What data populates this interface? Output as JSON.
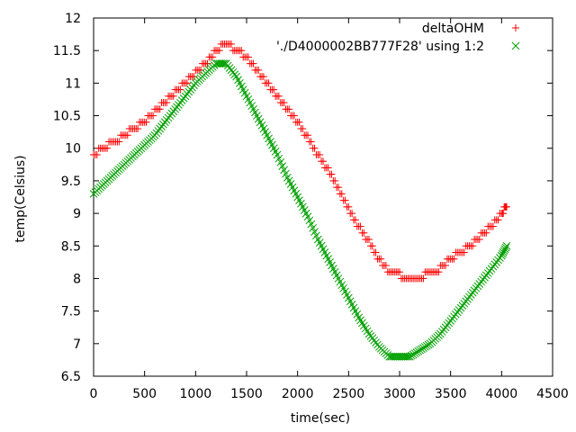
{
  "chart_data": {
    "type": "scatter",
    "xlabel": "time(sec)",
    "ylabel": "temp(Celsius)",
    "xlim": [
      0,
      4500
    ],
    "ylim": [
      6.5,
      12
    ],
    "xticks": [
      0,
      500,
      1000,
      1500,
      2000,
      2500,
      3000,
      3500,
      4000,
      4500
    ],
    "yticks": [
      6.5,
      7,
      7.5,
      8,
      8.5,
      9,
      9.5,
      10,
      10.5,
      11,
      11.5,
      12
    ],
    "xtick_labels": [
      "0",
      "500",
      "1000",
      "1500",
      "2000",
      "2500",
      "3000",
      "3500",
      "4000",
      "4500"
    ],
    "ytick_labels": [
      "6.5",
      "7",
      "7.5",
      "8",
      "8.5",
      "9",
      "9.5",
      "10",
      "10.5",
      "11",
      "11.5",
      "12"
    ],
    "grid": false,
    "legend_position": "top-right",
    "series": [
      {
        "name": "deltaOHM",
        "marker": "plus",
        "color": "#ff0000",
        "x": [
          0,
          100,
          200,
          300,
          400,
          500,
          600,
          700,
          800,
          900,
          1000,
          1100,
          1200,
          1300,
          1400,
          1500,
          1600,
          1700,
          1800,
          1900,
          2000,
          2100,
          2200,
          2300,
          2400,
          2500,
          2600,
          2700,
          2800,
          2900,
          3000,
          3100,
          3200,
          3300,
          3400,
          3500,
          3600,
          3700,
          3800,
          3900,
          4000,
          4050
        ],
        "y": [
          9.9,
          10.0,
          10.1,
          10.2,
          10.3,
          10.4,
          10.55,
          10.7,
          10.85,
          11.0,
          11.15,
          11.3,
          11.5,
          11.6,
          11.5,
          11.4,
          11.2,
          11.0,
          10.8,
          10.6,
          10.4,
          10.15,
          9.9,
          9.65,
          9.35,
          9.05,
          8.8,
          8.55,
          8.3,
          8.1,
          8.05,
          8.0,
          8.0,
          8.1,
          8.15,
          8.3,
          8.4,
          8.5,
          8.65,
          8.8,
          9.0,
          9.1
        ]
      },
      {
        "name": "'./D4000002BB777F28' using 1:2",
        "marker": "cross",
        "color": "#00a000",
        "x": [
          0,
          100,
          200,
          300,
          400,
          500,
          600,
          700,
          800,
          900,
          1000,
          1100,
          1200,
          1300,
          1400,
          1500,
          1600,
          1700,
          1800,
          1900,
          2000,
          2100,
          2200,
          2300,
          2400,
          2500,
          2600,
          2700,
          2800,
          2900,
          3000,
          3100,
          3200,
          3300,
          3400,
          3500,
          3600,
          3700,
          3800,
          3900,
          4000,
          4050
        ],
        "y": [
          9.3,
          9.45,
          9.6,
          9.75,
          9.9,
          10.05,
          10.2,
          10.4,
          10.6,
          10.8,
          11.0,
          11.15,
          11.3,
          11.3,
          11.1,
          10.8,
          10.5,
          10.2,
          9.9,
          9.55,
          9.25,
          8.95,
          8.6,
          8.3,
          8.0,
          7.7,
          7.4,
          7.15,
          6.95,
          6.8,
          6.8,
          6.8,
          6.9,
          7.0,
          7.15,
          7.35,
          7.55,
          7.75,
          7.95,
          8.15,
          8.35,
          8.5
        ]
      }
    ]
  }
}
